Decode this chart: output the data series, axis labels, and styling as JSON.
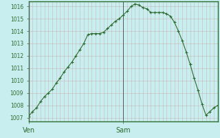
{
  "x_values": [
    0,
    1,
    2,
    3,
    4,
    5,
    6,
    7,
    8,
    9,
    10,
    11,
    12,
    13,
    14,
    15,
    16,
    17,
    18,
    19,
    20,
    21,
    22,
    23,
    24,
    25,
    26,
    27,
    28,
    29,
    30,
    31,
    32,
    33,
    34,
    35,
    36,
    37,
    38,
    39,
    40,
    41,
    42,
    43,
    44,
    45,
    46,
    47,
    48
  ],
  "y_values": [
    1007.1,
    1007.5,
    1007.8,
    1008.3,
    1008.7,
    1009.0,
    1009.3,
    1009.8,
    1010.2,
    1010.7,
    1011.1,
    1011.5,
    1012.0,
    1012.5,
    1013.0,
    1013.7,
    1013.8,
    1013.8,
    1013.8,
    1013.9,
    1014.2,
    1014.5,
    1014.8,
    1015.0,
    1015.3,
    1015.6,
    1016.0,
    1016.2,
    1016.1,
    1015.9,
    1015.8,
    1015.5,
    1015.5,
    1015.5,
    1015.5,
    1015.4,
    1015.2,
    1014.7,
    1014.0,
    1013.2,
    1012.3,
    1011.3,
    1010.2,
    1009.2,
    1008.1,
    1007.2,
    1007.5,
    1007.8,
    1008.0
  ],
  "xtick_positions": [
    0,
    24
  ],
  "xtick_labels": [
    "Ven",
    "Sam"
  ],
  "ytick_min": 1007,
  "ytick_max": 1016,
  "ytick_step": 1,
  "line_color": "#2d6a2d",
  "marker": "+",
  "marker_size": 3,
  "marker_linewidth": 0.8,
  "line_width": 0.8,
  "background_color": "#c8eef0",
  "grid_color": "#c8a0a0",
  "spine_color": "#2d6a2d",
  "tick_color": "#2d6a2d",
  "vline_color": "#555555",
  "vline_positions": [
    0,
    24
  ],
  "ylim": [
    1006.7,
    1016.4
  ],
  "xlim": [
    0,
    48
  ],
  "num_minor_xticks": 48,
  "ylabel_fontsize": 5.5,
  "xlabel_fontsize": 7
}
